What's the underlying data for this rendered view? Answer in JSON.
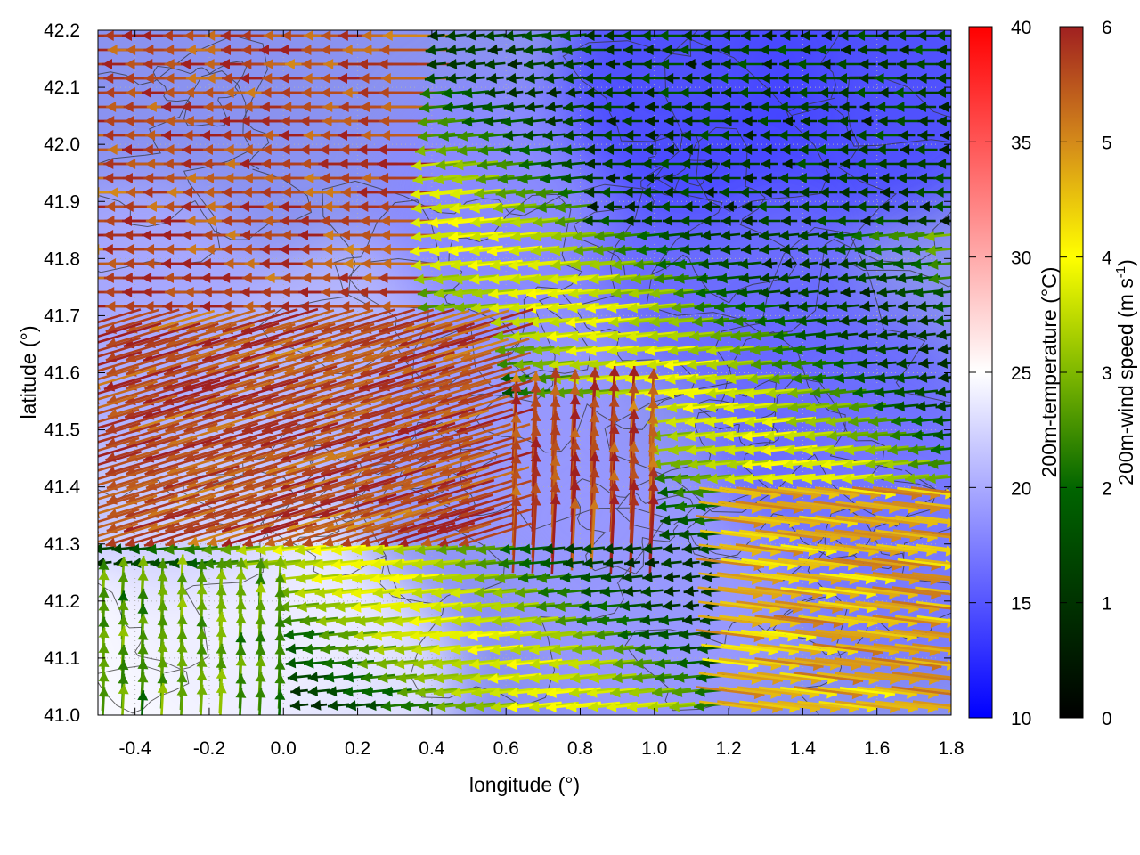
{
  "chart_data": {
    "type": "heatmap",
    "title": "",
    "xlabel": "longitude (°)",
    "ylabel": "latitude (°)",
    "xlim": [
      -0.5,
      1.8
    ],
    "ylim": [
      41.0,
      42.2
    ],
    "xticks": [
      -0.4,
      -0.2,
      0.0,
      0.2,
      0.4,
      0.6,
      0.8,
      1.0,
      1.2,
      1.4,
      1.6,
      1.8
    ],
    "xtick_labels": [
      "-0.4",
      "-0.2",
      "0.0",
      "0.2",
      "0.4",
      "0.6",
      "0.8",
      "1.0",
      "1.2",
      "1.4",
      "1.6",
      "1.8"
    ],
    "yticks": [
      41.0,
      41.1,
      41.2,
      41.3,
      41.4,
      41.5,
      41.6,
      41.7,
      41.8,
      41.9,
      42.0,
      42.1,
      42.2
    ],
    "ytick_labels": [
      "41.0",
      "41.1",
      "41.2",
      "41.3",
      "41.4",
      "41.5",
      "41.6",
      "41.7",
      "41.8",
      "41.9",
      "42.0",
      "42.1",
      "42.2"
    ],
    "grid": true,
    "background_field": {
      "name": "200m-temperature",
      "colorbar_label": "200m-temperature (°C)",
      "range": [
        10,
        40
      ],
      "ticks": [
        10,
        15,
        20,
        25,
        30,
        35,
        40
      ],
      "tick_labels": [
        "10",
        "15",
        "20",
        "25",
        "30",
        "35",
        "40"
      ],
      "colors": [
        "#0000ff",
        "#ffffff",
        "#ff0000"
      ],
      "regions": [
        {
          "lon": -0.5,
          "lat": 41.05,
          "temp": 24
        },
        {
          "lon": -0.3,
          "lat": 41.1,
          "temp": 25
        },
        {
          "lon": -0.1,
          "lat": 41.2,
          "temp": 24
        },
        {
          "lon": 0.1,
          "lat": 41.05,
          "temp": 24
        },
        {
          "lon": -0.3,
          "lat": 41.45,
          "temp": 22
        },
        {
          "lon": -0.4,
          "lat": 41.7,
          "temp": 20
        },
        {
          "lon": 0.2,
          "lat": 41.6,
          "temp": 21
        },
        {
          "lon": 0.6,
          "lat": 41.5,
          "temp": 19
        },
        {
          "lon": 0.6,
          "lat": 41.9,
          "temp": 18
        },
        {
          "lon": 1.0,
          "lat": 41.2,
          "temp": 19
        },
        {
          "lon": 1.2,
          "lat": 41.8,
          "temp": 16
        },
        {
          "lon": 1.5,
          "lat": 41.5,
          "temp": 16
        },
        {
          "lon": 1.6,
          "lat": 42.1,
          "temp": 14
        },
        {
          "lon": 1.1,
          "lat": 42.1,
          "temp": 14
        },
        {
          "lon": 1.7,
          "lat": 41.3,
          "temp": 17
        }
      ]
    },
    "vector_field": {
      "name": "200m-wind speed",
      "colorbar_label": "200m-wind speed (m s-1)",
      "colorbar_label_main": "200m-wind speed (m s",
      "colorbar_label_sup": "-1",
      "colorbar_label_end": ")",
      "range": [
        0,
        6
      ],
      "ticks": [
        0,
        1,
        2,
        3,
        4,
        5,
        6
      ],
      "tick_labels": [
        "0",
        "1",
        "2",
        "3",
        "4",
        "5",
        "6"
      ],
      "colors": [
        "#000000",
        "#006400",
        "#7fb800",
        "#ffff00",
        "#d4a017",
        "#a02020"
      ],
      "flow_regions": [
        {
          "lat_min": 41.7,
          "lat_max": 42.2,
          "lon_min": -0.5,
          "lon_max": 0.4,
          "speed": 6,
          "direction": "west"
        },
        {
          "lat_min": 41.3,
          "lat_max": 41.7,
          "lon_min": -0.5,
          "lon_max": 0.6,
          "speed": 6,
          "direction": "west-northwest"
        },
        {
          "lat_min": 41.85,
          "lat_max": 42.2,
          "lon_min": 0.8,
          "lon_max": 1.8,
          "speed": 1.5,
          "direction": "west"
        },
        {
          "lat_min": 41.0,
          "lat_max": 41.4,
          "lon_min": 1.2,
          "lon_max": 1.8,
          "speed": 5,
          "direction": "east"
        },
        {
          "lat_min": 41.3,
          "lat_max": 41.55,
          "lon_min": 0.6,
          "lon_max": 1.0,
          "speed": 6,
          "direction": "north"
        },
        {
          "lat_min": 41.0,
          "lat_max": 41.25,
          "lon_min": -0.5,
          "lon_max": 0.0,
          "speed": 3,
          "direction": "north"
        }
      ]
    }
  }
}
